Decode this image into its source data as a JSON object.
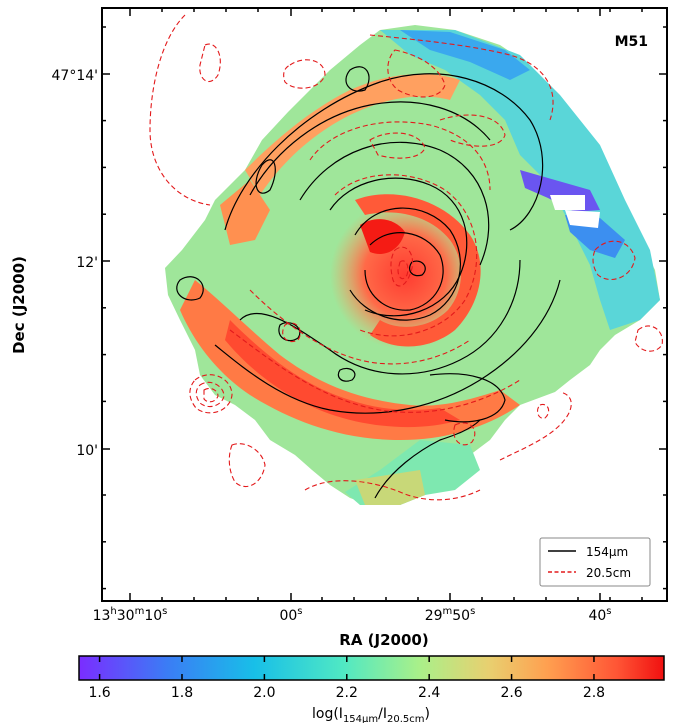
{
  "chart_data": {
    "type": "heatmap",
    "panel_label": "M51",
    "xlabel": "RA (J2000)",
    "ylabel": "Dec (J2000)",
    "x_ticks": [
      {
        "h": "13",
        "hu": "h",
        "m": "30",
        "mu": "m",
        "s": "10",
        "su": "s"
      },
      {
        "h": "",
        "hu": "",
        "m": "",
        "mu": "",
        "s": "00",
        "su": "s"
      },
      {
        "h": "",
        "hu": "",
        "m": "29",
        "mu": "m",
        "s": "50",
        "su": "s"
      },
      {
        "h": "",
        "hu": "",
        "m": "",
        "mu": "",
        "s": "40",
        "su": "s"
      }
    ],
    "y_ticks": [
      "47°14'",
      "12'",
      "10'"
    ],
    "colorbar": {
      "range": [
        1.55,
        2.97
      ],
      "ticks": [
        "1.6",
        "1.8",
        "2.0",
        "2.2",
        "2.4",
        "2.6",
        "2.8"
      ],
      "tick_values": [
        1.6,
        1.8,
        2.0,
        2.2,
        2.4,
        2.6,
        2.8
      ],
      "label_base": "log(I",
      "label_sub1": "154μm",
      "label_mid": "/I",
      "label_sub2": "20.5cm",
      "label_end": ")"
    },
    "legend": [
      {
        "label": "154μm",
        "style": "solid",
        "color": "#000000"
      },
      {
        "label": "20.5cm",
        "style": "dashed",
        "color": "#e31a1c"
      }
    ],
    "legend_position": "lower-right",
    "colormap": "rainbow"
  }
}
